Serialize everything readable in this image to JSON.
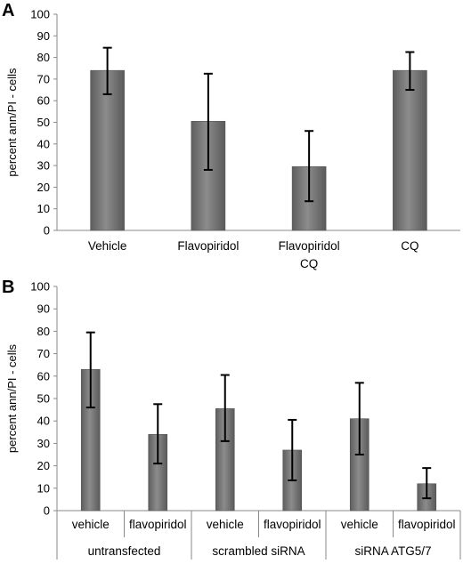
{
  "chart_data": [
    {
      "type": "bar",
      "panel_label": "A",
      "ylabel": "percent ann/PI - cells",
      "xlabel": "",
      "ylim": [
        0,
        100
      ],
      "yticks": [
        0,
        10,
        20,
        30,
        40,
        50,
        60,
        70,
        80,
        90,
        100
      ],
      "categories": [
        {
          "lines": [
            "Vehicle"
          ]
        },
        {
          "lines": [
            "Flavopiridol"
          ]
        },
        {
          "lines": [
            "Flavopiridol",
            "CQ"
          ]
        },
        {
          "lines": [
            "CQ"
          ]
        }
      ],
      "values": [
        74,
        50.5,
        29.5,
        74
      ],
      "error": [
        [
          63,
          84.5
        ],
        [
          28,
          72.5
        ],
        [
          13.5,
          46
        ],
        [
          65,
          82.5
        ]
      ],
      "bar_color": "#7a7a7a",
      "grid": false,
      "legend": "none"
    },
    {
      "type": "bar",
      "panel_label": "B",
      "ylabel": "percent ann/PI - cells",
      "xlabel": "",
      "ylim": [
        0,
        100
      ],
      "yticks": [
        0,
        10,
        20,
        30,
        40,
        50,
        60,
        70,
        80,
        90,
        100
      ],
      "categories": [
        {
          "lines": [
            "vehicle"
          ]
        },
        {
          "lines": [
            "flavopiridol"
          ]
        },
        {
          "lines": [
            "vehicle"
          ]
        },
        {
          "lines": [
            "flavopiridol"
          ]
        },
        {
          "lines": [
            "vehicle"
          ]
        },
        {
          "lines": [
            "flavopiridol"
          ]
        }
      ],
      "groups": [
        {
          "label": "untransfected",
          "span": 2
        },
        {
          "label": "scrambled siRNA",
          "span": 2
        },
        {
          "label": "siRNA ATG5/7",
          "span": 2
        }
      ],
      "values": [
        63,
        34,
        45.5,
        27,
        41,
        12
      ],
      "error": [
        [
          46,
          79.5
        ],
        [
          21,
          47.5
        ],
        [
          31,
          60.5
        ],
        [
          13.5,
          40.5
        ],
        [
          25,
          57
        ],
        [
          5.5,
          19
        ]
      ],
      "bar_color": "#7a7a7a",
      "grid": false,
      "legend": "none"
    }
  ]
}
